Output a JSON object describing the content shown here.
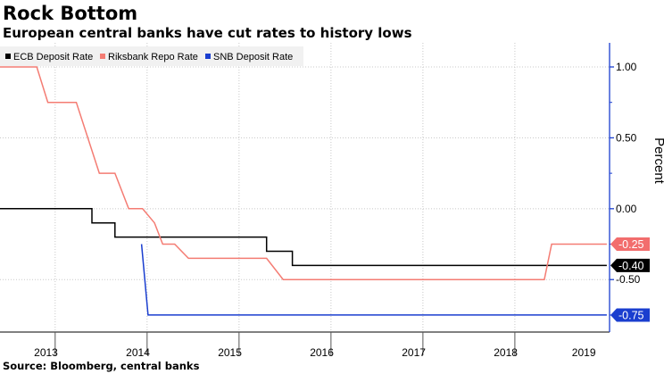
{
  "title": "Rock Bottom",
  "subtitle": "European central banks have cut rates to history lows",
  "source": "Source: Bloomberg, central banks",
  "chart_data": {
    "type": "line",
    "ylabel": "Percent",
    "ylim": [
      -0.87,
      1.17
    ],
    "y_ticks": [
      {
        "value": 1.0,
        "label": "1.00"
      },
      {
        "value": 0.5,
        "label": "0.50"
      },
      {
        "value": 0.0,
        "label": "0.00"
      },
      {
        "value": -0.5,
        "label": "-0.50"
      }
    ],
    "xlim": [
      2013.0,
      2019.63
    ],
    "x_ticks": [
      {
        "value": 2013.5,
        "label": "2013"
      },
      {
        "value": 2014.5,
        "label": "2014"
      },
      {
        "value": 2015.5,
        "label": "2015"
      },
      {
        "value": 2016.5,
        "label": "2016"
      },
      {
        "value": 2017.5,
        "label": "2017"
      },
      {
        "value": 2018.5,
        "label": "2018"
      },
      {
        "value": 2019.35,
        "label": "2019"
      }
    ],
    "x_year_boundaries": [
      2013.6,
      2014.6,
      2015.6,
      2016.6,
      2017.6,
      2018.6
    ],
    "grid": true,
    "legend_position": "top-left",
    "series": [
      {
        "name": "ECB Deposit Rate",
        "color": "#000000",
        "last_label": "-0.40",
        "label_color": "#000000",
        "points": [
          [
            2013.0,
            0.0
          ],
          [
            2014.0,
            0.0
          ],
          [
            2014.0,
            -0.1
          ],
          [
            2014.25,
            -0.1
          ],
          [
            2014.25,
            -0.2
          ],
          [
            2015.9,
            -0.2
          ],
          [
            2015.9,
            -0.3
          ],
          [
            2016.18,
            -0.3
          ],
          [
            2016.18,
            -0.4
          ],
          [
            2019.6,
            -0.4
          ]
        ]
      },
      {
        "name": "Riksbank Repo Rate",
        "color": "#f47c73",
        "last_label": "-0.25",
        "label_color": "#f26d6d",
        "points": [
          [
            2013.0,
            1.0
          ],
          [
            2013.4,
            1.0
          ],
          [
            2013.52,
            0.75
          ],
          [
            2013.83,
            0.75
          ],
          [
            2014.08,
            0.25
          ],
          [
            2014.25,
            0.25
          ],
          [
            2014.4,
            0.0
          ],
          [
            2014.55,
            0.0
          ],
          [
            2014.68,
            -0.1
          ],
          [
            2014.77,
            -0.25
          ],
          [
            2014.9,
            -0.25
          ],
          [
            2015.05,
            -0.35
          ],
          [
            2015.9,
            -0.35
          ],
          [
            2016.08,
            -0.5
          ],
          [
            2018.92,
            -0.5
          ],
          [
            2019.0,
            -0.25
          ],
          [
            2019.6,
            -0.25
          ]
        ]
      },
      {
        "name": "SNB Deposit Rate",
        "color": "#1a3ecf",
        "last_label": "-0.75",
        "label_color": "#1a3ecf",
        "points": [
          [
            2014.54,
            -0.25
          ],
          [
            2014.61,
            -0.75
          ],
          [
            2019.6,
            -0.75
          ]
        ]
      }
    ]
  }
}
